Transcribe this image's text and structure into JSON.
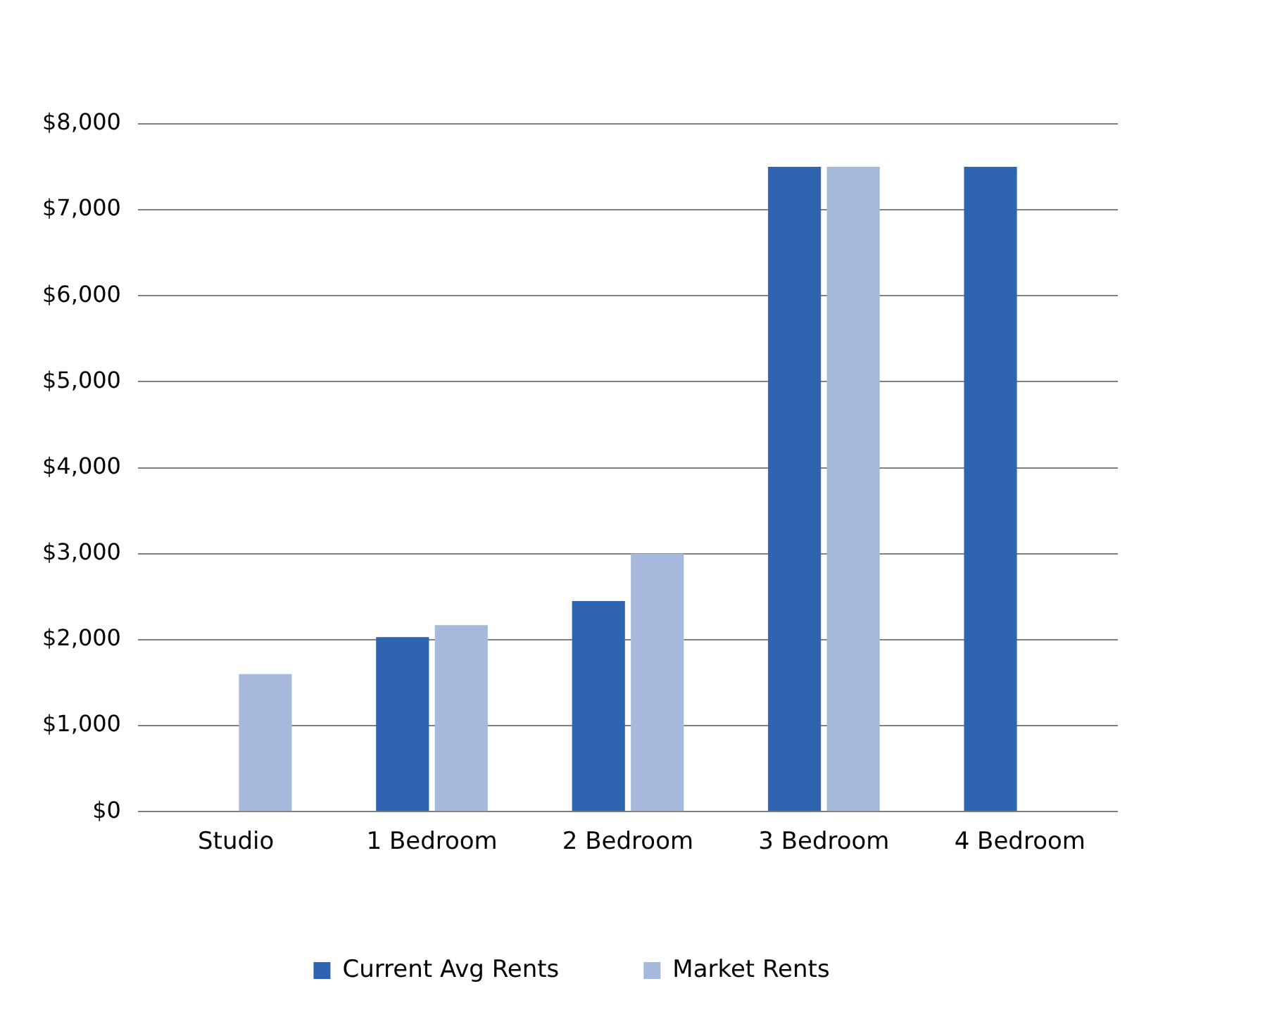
{
  "chart_data": {
    "type": "bar",
    "categories": [
      "Studio",
      "1 Bedroom",
      "2 Bedroom",
      "3 Bedroom",
      "4 Bedroom"
    ],
    "series": [
      {
        "name": "Current Avg Rents",
        "color": "#2e64b0",
        "values": [
          null,
          2030,
          2450,
          7500,
          7500
        ]
      },
      {
        "name": "Market Rents",
        "color": "#a6b9dc",
        "values": [
          1600,
          2170,
          3000,
          7500,
          null
        ]
      }
    ],
    "ylim": [
      0,
      8000
    ],
    "yticks": [
      {
        "value": 0,
        "label": "$0"
      },
      {
        "value": 1000,
        "label": "$1,000"
      },
      {
        "value": 2000,
        "label": "$2,000"
      },
      {
        "value": 3000,
        "label": "$3,000"
      },
      {
        "value": 4000,
        "label": "$4,000"
      },
      {
        "value": 5000,
        "label": "$5,000"
      },
      {
        "value": 6000,
        "label": "$6,000"
      },
      {
        "value": 7000,
        "label": "$7,000"
      },
      {
        "value": 8000,
        "label": "$8,000"
      }
    ],
    "grid": "y",
    "legend": "bottom"
  }
}
